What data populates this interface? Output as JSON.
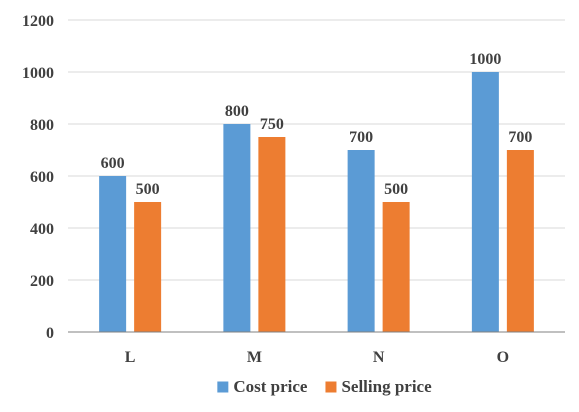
{
  "chart_data": {
    "type": "bar",
    "title": "",
    "xlabel": "",
    "ylabel": "",
    "categories": [
      "L",
      "M",
      "N",
      "O"
    ],
    "series": [
      {
        "name": "Cost price",
        "values": [
          600,
          800,
          700,
          1000
        ],
        "color": "#5b9bd5"
      },
      {
        "name": "Selling price",
        "values": [
          500,
          750,
          500,
          700
        ],
        "color": "#ed7d31"
      }
    ],
    "ylim": [
      0,
      1200
    ],
    "yticks": [
      0,
      200,
      400,
      600,
      800,
      1000,
      1200
    ],
    "grid": true,
    "legend_position": "bottom"
  }
}
